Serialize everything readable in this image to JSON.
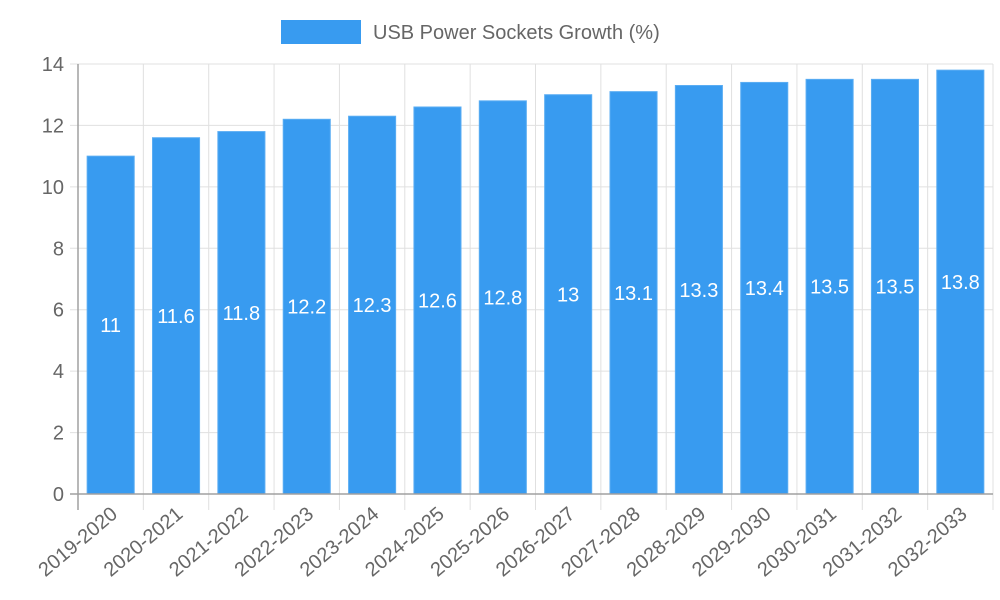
{
  "chart_data": {
    "type": "bar",
    "title": "",
    "legend": [
      {
        "label": "USB Power Sockets Growth (%)",
        "color": "#389BF0"
      }
    ],
    "legend_position": "top",
    "categories": [
      "2019-2020",
      "2020-2021",
      "2021-2022",
      "2022-2023",
      "2023-2024",
      "2024-2025",
      "2025-2026",
      "2026-2027",
      "2027-2028",
      "2028-2029",
      "2029-2030",
      "2030-2031",
      "2031-2032",
      "2032-2033"
    ],
    "series": [
      {
        "name": "USB Power Sockets Growth (%)",
        "values": [
          11,
          11.6,
          11.8,
          12.2,
          12.3,
          12.6,
          12.8,
          13,
          13.1,
          13.3,
          13.4,
          13.5,
          13.5,
          13.8
        ]
      }
    ],
    "data_labels": [
      "11",
      "11.6",
      "11.8",
      "12.2",
      "12.3",
      "12.6",
      "12.8",
      "13",
      "13.1",
      "13.3",
      "13.4",
      "13.5",
      "13.5",
      "13.8"
    ],
    "xlabel": "",
    "ylabel": "",
    "ylim": [
      0,
      14
    ],
    "yticks": [
      "0",
      "2",
      "4",
      "6",
      "8",
      "10",
      "12",
      "14"
    ],
    "grid": true
  },
  "colors": {
    "bar": "#389BF0",
    "bar_border": "#5AADF3",
    "grid": "#e0e0e0",
    "axis": "#a0a0a0",
    "text": "#666666"
  }
}
